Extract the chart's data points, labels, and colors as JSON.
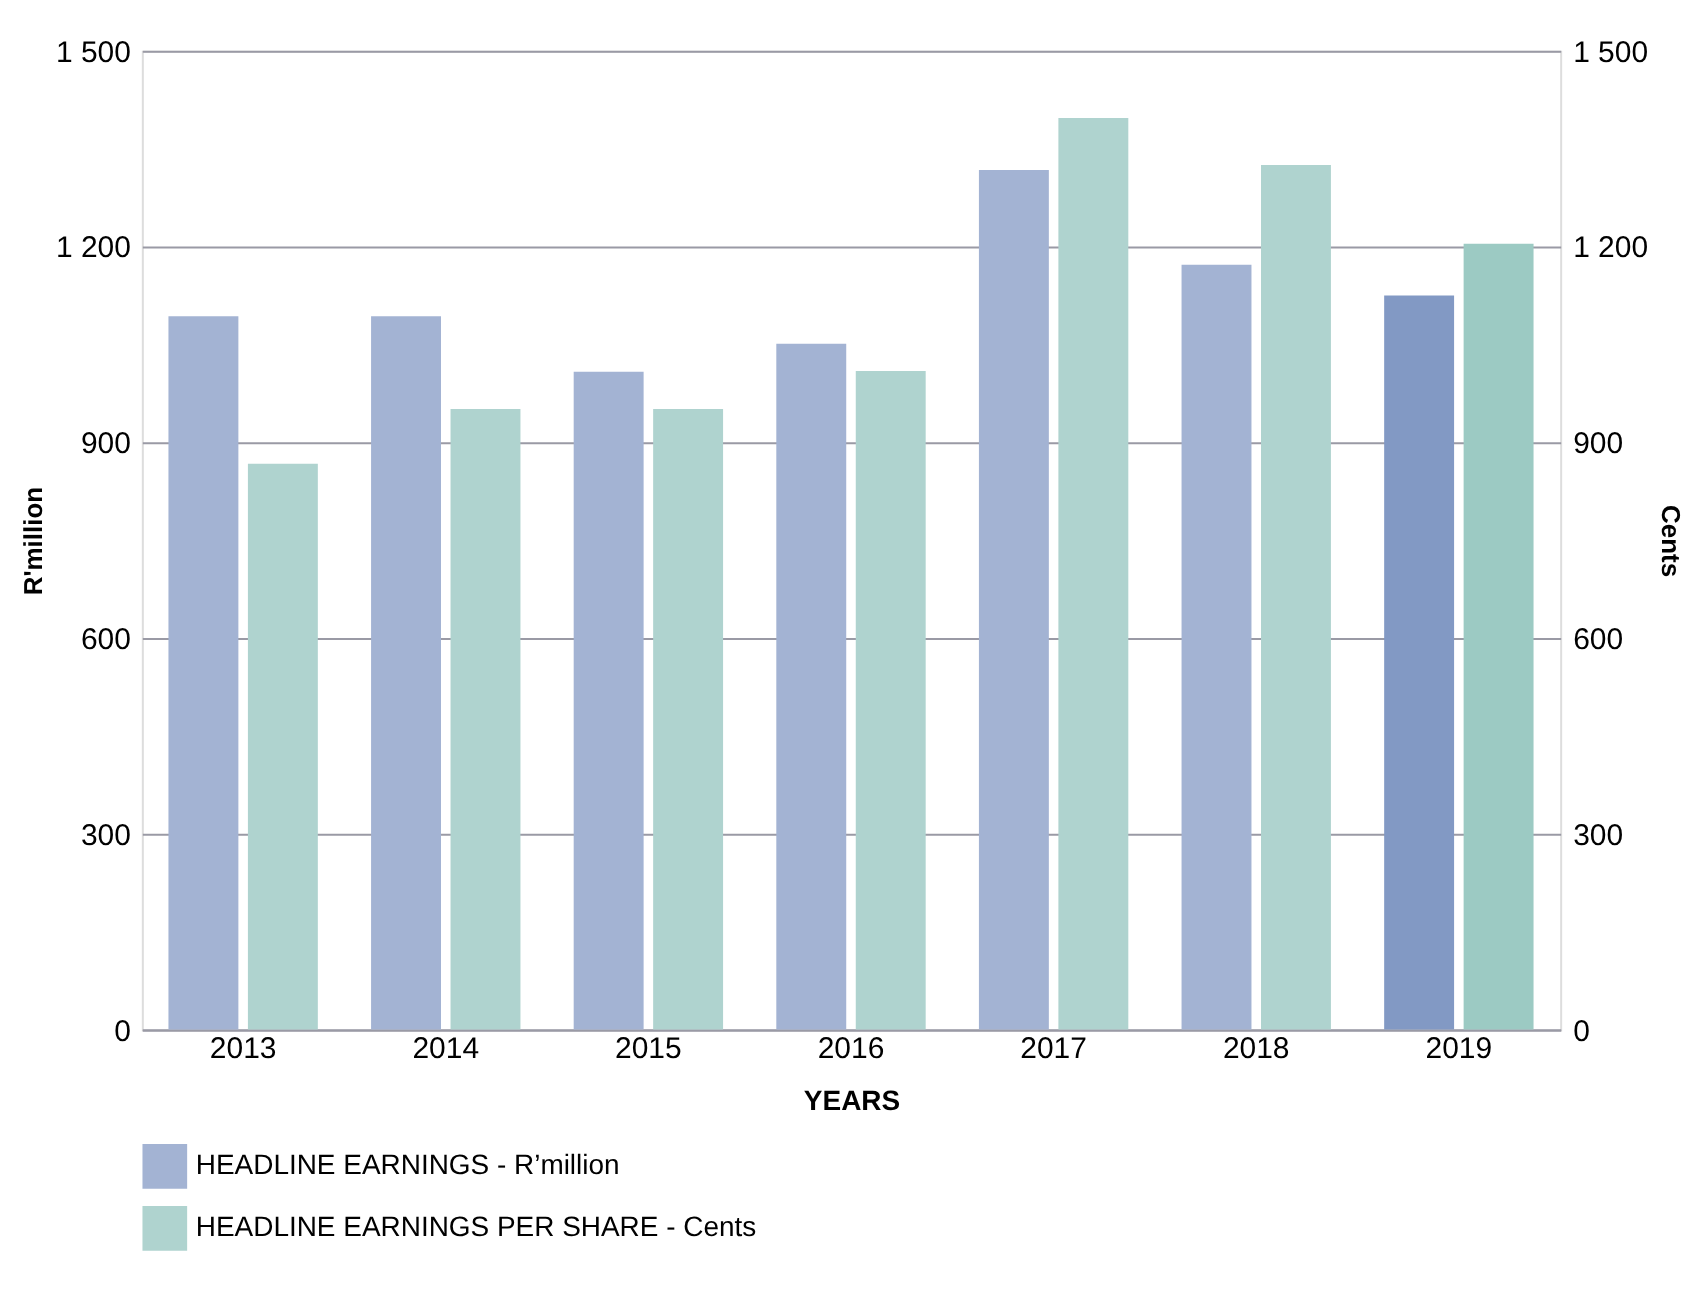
{
  "chart_data": {
    "type": "bar",
    "xlabel": "YEARS",
    "ylabel": "R'million",
    "y2label": "Cents",
    "categories": [
      "2013",
      "2014",
      "2015",
      "2016",
      "2017",
      "2018",
      "2019"
    ],
    "series": [
      {
        "name": "HEADLINE EARNINGS - R’million",
        "color": "#a3b3d3",
        "colors": [
          "#a3b3d3",
          "#a3b3d3",
          "#a3b3d3",
          "#a3b3d3",
          "#a3b3d3",
          "#a3b3d3",
          "#8299c4"
        ],
        "values": [
          1093,
          1093,
          1008,
          1051,
          1317,
          1172,
          1125
        ]
      },
      {
        "name": "HEADLINE EARNINGS PER SHARE - Cents",
        "color": "#afd3cf",
        "colors": [
          "#afd3cf",
          "#afd3cf",
          "#afd3cf",
          "#afd3cf",
          "#afd3cf",
          "#afd3cf",
          "#9ccac3"
        ],
        "values": [
          867,
          951,
          951,
          1009,
          1397,
          1325,
          1204
        ],
        "axis": "y2"
      }
    ],
    "ylim": [
      0,
      1500
    ],
    "yticks": [
      0,
      300,
      600,
      900,
      {
        "value": 1200,
        "label": "1 200"
      },
      {
        "value": 1500,
        "label": "1 500"
      }
    ],
    "y2lim": [
      0,
      1500
    ],
    "y2ticks": [
      0,
      300,
      600,
      900,
      {
        "value": 1200,
        "label": "1 200"
      },
      {
        "value": 1500,
        "label": "1 500"
      }
    ],
    "grid": "y",
    "legend": "bottom"
  }
}
